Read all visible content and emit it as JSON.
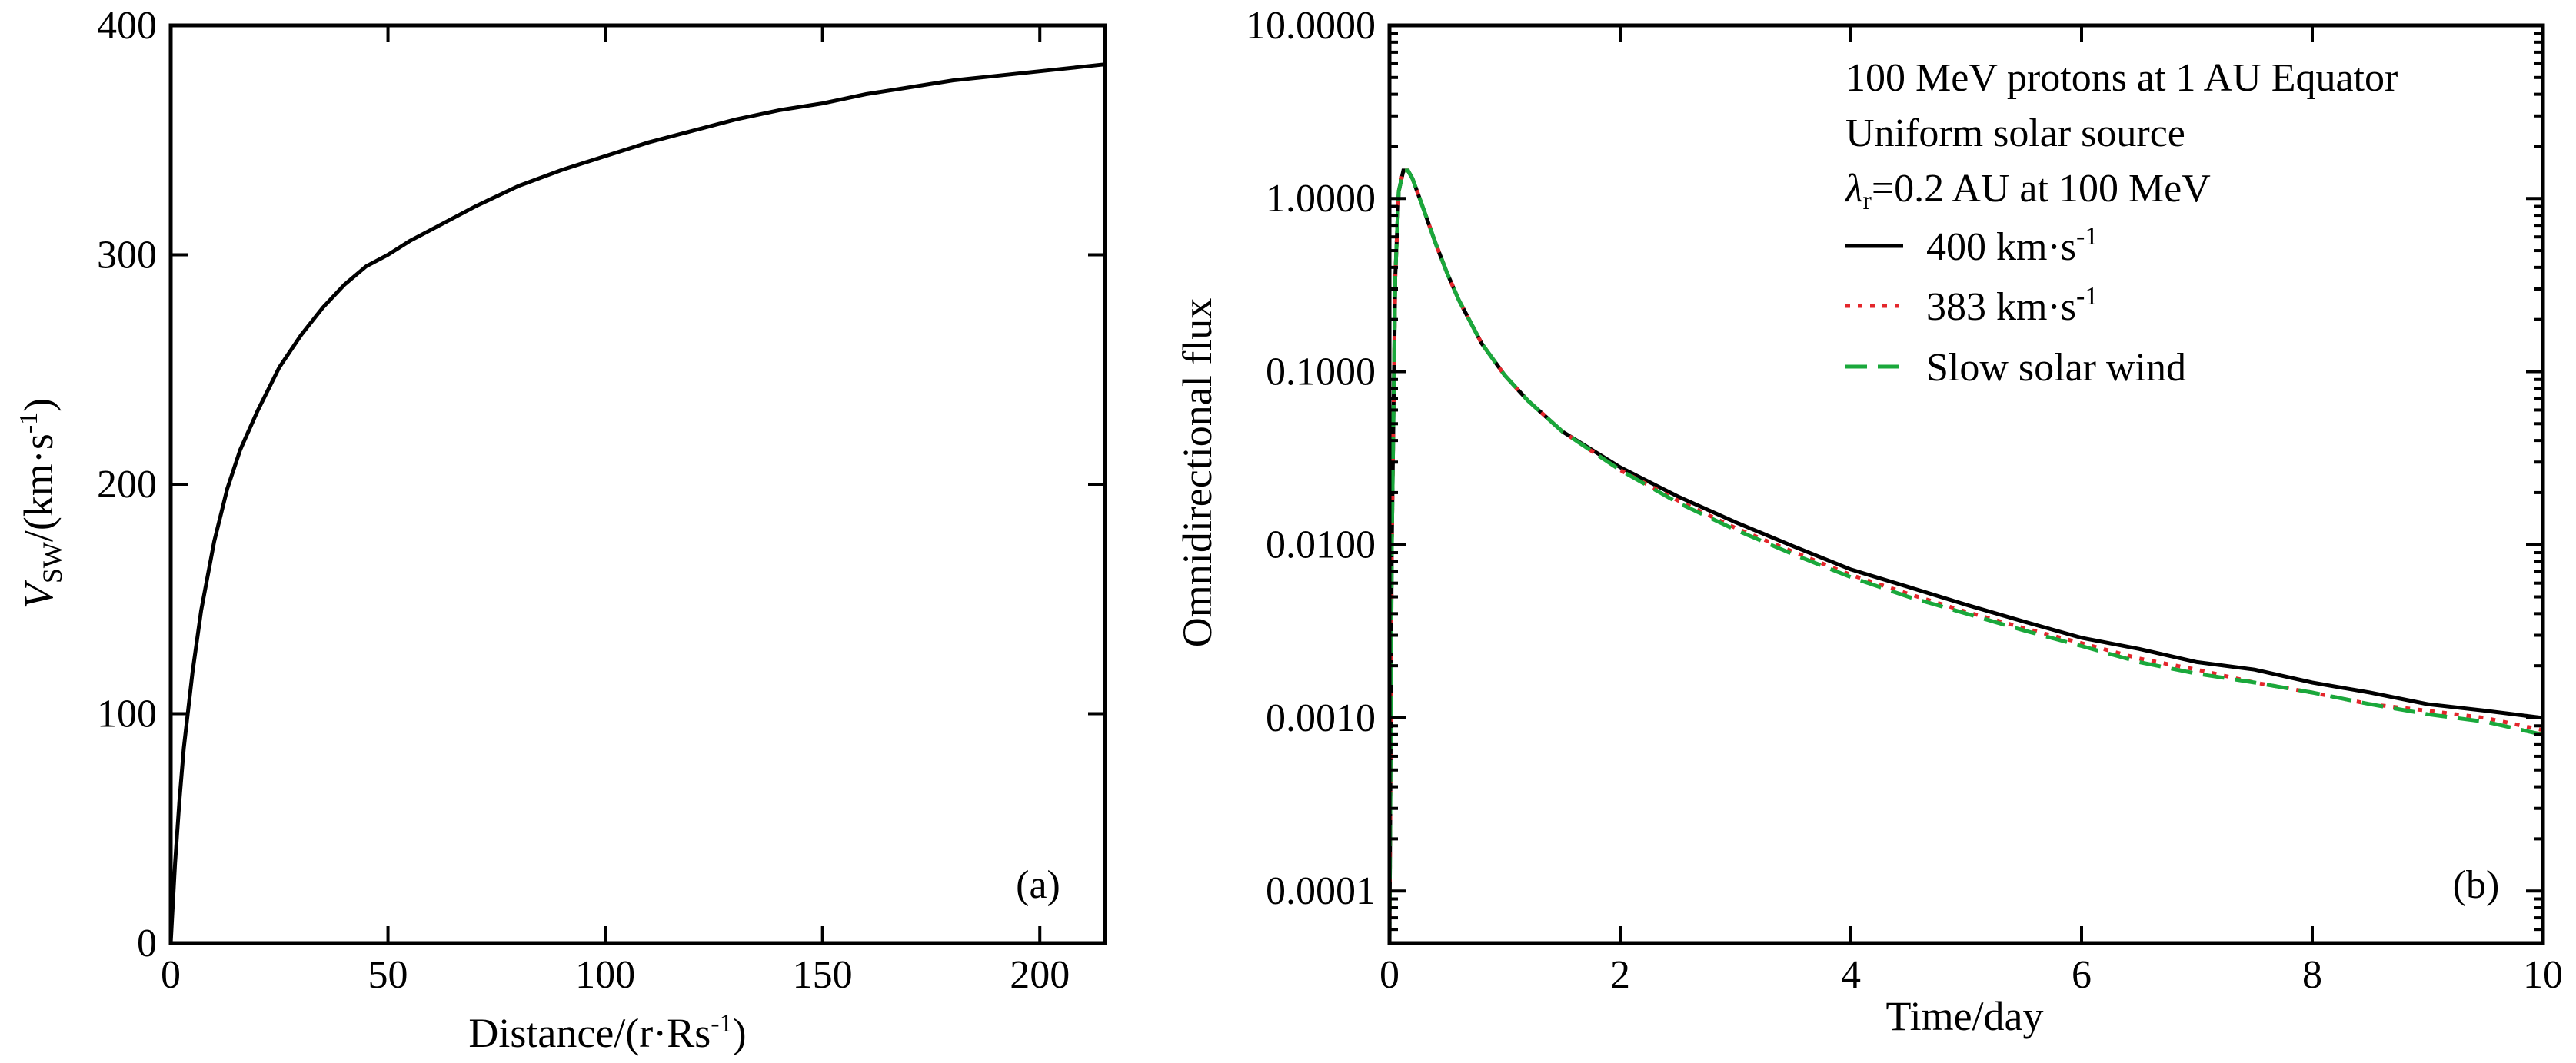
{
  "chart_data": [
    {
      "id": "a",
      "type": "line",
      "panel_label": "(a)",
      "xlabel": "Distance/(r·Rs⁻¹)",
      "ylabel": "V_SW/(km·s⁻¹)",
      "ylabel_main": "V",
      "ylabel_sub": "SW",
      "ylabel_rest": "/(km·s",
      "ylabel_sup": "-1",
      "ylabel_close": ")",
      "xlabel_main": "Distance/(r·Rs",
      "xlabel_sup": "-1",
      "xlabel_close": ")",
      "xlim": [
        0,
        215
      ],
      "ylim": [
        0,
        400
      ],
      "xticks": [
        0,
        50,
        100,
        150,
        200
      ],
      "yticks": [
        0,
        100,
        200,
        300,
        400
      ],
      "series": [
        {
          "x": [
            0,
            1,
            2,
            3,
            5,
            7,
            10,
            13,
            16,
            20,
            25,
            30,
            35,
            40,
            45,
            50,
            55,
            60,
            70,
            80,
            90,
            100,
            110,
            120,
            130,
            140,
            150,
            160,
            170,
            180,
            190,
            200,
            210,
            215
          ],
          "y": [
            0,
            35,
            62,
            85,
            118,
            145,
            175,
            198,
            215,
            232,
            251,
            265,
            277,
            287,
            295,
            300,
            306,
            311,
            321,
            330,
            337,
            343,
            349,
            354,
            359,
            363,
            366,
            370,
            373,
            376,
            378,
            380,
            382,
            383
          ]
        }
      ]
    },
    {
      "id": "b",
      "type": "line",
      "panel_label": "(b)",
      "xlabel": "Time/day",
      "ylabel": "Omnidirectional flux",
      "yscale": "log",
      "xlim": [
        0,
        10
      ],
      "ylim": [
        5e-05,
        10
      ],
      "xticks": [
        0,
        2,
        4,
        6,
        8,
        10
      ],
      "yticks": [
        0.0001,
        0.001,
        0.01,
        0.1,
        1,
        10
      ],
      "ytick_labels": [
        "0.0001",
        "0.0010",
        "0.0100",
        "0.1000",
        "1.0000",
        "10.0000"
      ],
      "annotations": [
        "100 MeV protons at 1 AU Equator",
        "Uniform solar source",
        "λr=0.2 AU at 100 MeV"
      ],
      "series": [
        {
          "name": "400 km·s⁻¹",
          "legend_main": "400 km·s",
          "legend_sup": "-1",
          "color": "#000000",
          "dash": "none",
          "x": [
            0,
            0.02,
            0.05,
            0.08,
            0.12,
            0.16,
            0.2,
            0.3,
            0.4,
            0.5,
            0.6,
            0.8,
            1.0,
            1.2,
            1.5,
            2.0,
            2.5,
            3.0,
            3.5,
            4.0,
            4.5,
            5.0,
            5.5,
            6.0,
            6.5,
            7.0,
            7.5,
            8.0,
            8.5,
            9.0,
            9.5,
            10.0
          ],
          "y": [
            5e-05,
            0.01,
            0.35,
            1.1,
            1.45,
            1.45,
            1.3,
            0.85,
            0.55,
            0.37,
            0.26,
            0.145,
            0.095,
            0.068,
            0.045,
            0.028,
            0.019,
            0.0135,
            0.0098,
            0.0072,
            0.0057,
            0.0045,
            0.0036,
            0.0029,
            0.0025,
            0.0021,
            0.0019,
            0.0016,
            0.0014,
            0.0012,
            0.0011,
            0.001
          ]
        },
        {
          "name": "383 km·s⁻¹",
          "legend_main": "383 km·s",
          "legend_sup": "-1",
          "color": "#e3262b",
          "dash": "6 10",
          "x": [
            0,
            0.02,
            0.05,
            0.08,
            0.12,
            0.16,
            0.2,
            0.3,
            0.4,
            0.5,
            0.6,
            0.8,
            1.0,
            1.2,
            1.5,
            2.0,
            2.5,
            3.0,
            3.5,
            4.0,
            4.5,
            5.0,
            5.5,
            6.0,
            6.5,
            7.0,
            7.5,
            8.0,
            8.5,
            9.0,
            9.5,
            10.0
          ],
          "y": [
            5e-05,
            0.01,
            0.35,
            1.1,
            1.45,
            1.45,
            1.3,
            0.85,
            0.55,
            0.37,
            0.26,
            0.145,
            0.095,
            0.068,
            0.045,
            0.027,
            0.018,
            0.0125,
            0.0091,
            0.0067,
            0.0052,
            0.0041,
            0.0033,
            0.0027,
            0.0022,
            0.0019,
            0.0016,
            0.0014,
            0.0012,
            0.0011,
            0.001,
            0.00085
          ]
        },
        {
          "name": "Slow solar wind",
          "legend_main": "Slow solar wind",
          "legend_sup": "",
          "color": "#1aa83b",
          "dash": "28 14",
          "x": [
            0,
            0.02,
            0.05,
            0.08,
            0.12,
            0.16,
            0.2,
            0.3,
            0.4,
            0.5,
            0.6,
            0.8,
            1.0,
            1.2,
            1.5,
            2.0,
            2.5,
            3.0,
            3.5,
            4.0,
            4.5,
            5.0,
            5.5,
            6.0,
            6.5,
            7.0,
            7.5,
            8.0,
            8.5,
            9.0,
            9.5,
            10.0
          ],
          "y": [
            5e-05,
            0.01,
            0.35,
            1.1,
            1.45,
            1.45,
            1.3,
            0.85,
            0.55,
            0.37,
            0.26,
            0.145,
            0.095,
            0.068,
            0.045,
            0.027,
            0.0175,
            0.0122,
            0.0088,
            0.0065,
            0.005,
            0.004,
            0.0032,
            0.0026,
            0.0021,
            0.0018,
            0.0016,
            0.0014,
            0.0012,
            0.00105,
            0.00095,
            0.0008
          ]
        }
      ]
    }
  ]
}
